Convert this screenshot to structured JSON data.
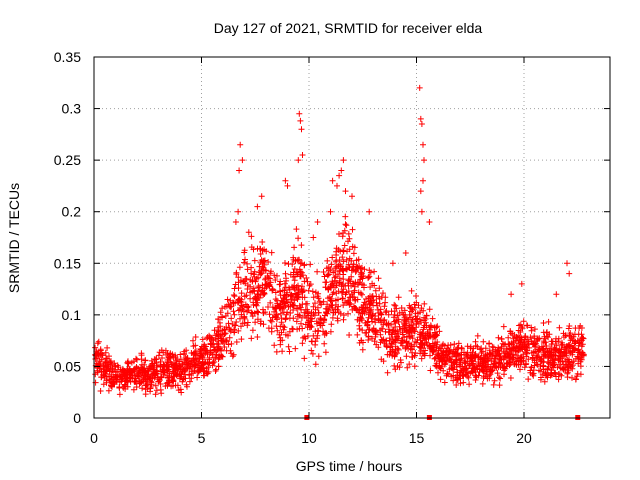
{
  "chart_data": {
    "type": "scatter",
    "title": "Day 127 of 2021, SRMTID for receiver elda",
    "xlabel": "GPS time / hours",
    "ylabel": "SRMTID / TECUs",
    "xlim": [
      0,
      24
    ],
    "ylim": [
      0,
      0.35
    ],
    "x_ticks": [
      0,
      5,
      10,
      15,
      20
    ],
    "x_tick_labels": [
      "0",
      "5",
      "10",
      "15",
      "20"
    ],
    "y_ticks": [
      0,
      0.05,
      0.1,
      0.15,
      0.2,
      0.25,
      0.3,
      0.35
    ],
    "y_tick_labels": [
      "0",
      "0.05",
      "0.1",
      "0.15",
      "0.2",
      "0.25",
      "0.3",
      "0.35"
    ],
    "grid": true,
    "marker": "+",
    "series_color": "#ff0000",
    "grid_color": "#a0a0a0",
    "envelope": {
      "x": [
        0,
        0.5,
        1,
        1.5,
        2,
        2.5,
        3,
        3.5,
        4,
        4.5,
        5,
        5.5,
        6,
        6.5,
        7,
        7.5,
        8,
        8.5,
        9,
        9.5,
        10,
        10.5,
        11,
        11.5,
        12,
        12.5,
        13,
        13.5,
        14,
        14.5,
        15,
        15.5,
        16,
        16.5,
        17,
        17.5,
        18,
        18.5,
        19,
        19.5,
        20,
        20.5,
        21,
        21.5,
        22,
        22.5
      ],
      "values": [
        0.055,
        0.05,
        0.04,
        0.04,
        0.045,
        0.04,
        0.045,
        0.05,
        0.045,
        0.055,
        0.055,
        0.065,
        0.08,
        0.1,
        0.12,
        0.12,
        0.125,
        0.11,
        0.105,
        0.13,
        0.1,
        0.1,
        0.12,
        0.14,
        0.13,
        0.115,
        0.1,
        0.09,
        0.08,
        0.08,
        0.085,
        0.08,
        0.06,
        0.055,
        0.05,
        0.05,
        0.055,
        0.05,
        0.06,
        0.065,
        0.07,
        0.06,
        0.065,
        0.06,
        0.06,
        0.065
      ],
      "x_range": [
        0.05,
        22.8
      ],
      "count": 2600
    },
    "peaks": [
      {
        "x": 6.8,
        "y": 0.265
      },
      {
        "x": 6.9,
        "y": 0.25
      },
      {
        "x": 6.75,
        "y": 0.24
      },
      {
        "x": 9.55,
        "y": 0.295
      },
      {
        "x": 9.6,
        "y": 0.288
      },
      {
        "x": 9.65,
        "y": 0.28
      },
      {
        "x": 9.7,
        "y": 0.255
      },
      {
        "x": 9.5,
        "y": 0.25
      },
      {
        "x": 8.9,
        "y": 0.23
      },
      {
        "x": 9.0,
        "y": 0.225
      },
      {
        "x": 7.8,
        "y": 0.215
      },
      {
        "x": 7.6,
        "y": 0.205
      },
      {
        "x": 11.6,
        "y": 0.25
      },
      {
        "x": 11.5,
        "y": 0.24
      },
      {
        "x": 11.4,
        "y": 0.235
      },
      {
        "x": 11.3,
        "y": 0.225
      },
      {
        "x": 11.1,
        "y": 0.23
      },
      {
        "x": 11.7,
        "y": 0.22
      },
      {
        "x": 12.0,
        "y": 0.215
      },
      {
        "x": 12.8,
        "y": 0.2
      },
      {
        "x": 11.0,
        "y": 0.2
      },
      {
        "x": 15.15,
        "y": 0.32
      },
      {
        "x": 15.2,
        "y": 0.29
      },
      {
        "x": 15.25,
        "y": 0.285
      },
      {
        "x": 15.3,
        "y": 0.265
      },
      {
        "x": 15.35,
        "y": 0.25
      },
      {
        "x": 15.3,
        "y": 0.23
      },
      {
        "x": 15.2,
        "y": 0.22
      },
      {
        "x": 15.25,
        "y": 0.2
      },
      {
        "x": 15.6,
        "y": 0.19
      },
      {
        "x": 22.0,
        "y": 0.15
      },
      {
        "x": 22.1,
        "y": 0.14
      },
      {
        "x": 19.9,
        "y": 0.13
      },
      {
        "x": 21.5,
        "y": 0.12
      },
      {
        "x": 19.4,
        "y": 0.12
      },
      {
        "x": 6.6,
        "y": 0.19
      },
      {
        "x": 6.7,
        "y": 0.2
      },
      {
        "x": 7.2,
        "y": 0.18
      },
      {
        "x": 10.4,
        "y": 0.19
      },
      {
        "x": 10.2,
        "y": 0.175
      },
      {
        "x": 14.5,
        "y": 0.16
      },
      {
        "x": 13.9,
        "y": 0.15
      }
    ],
    "baseline_markers": [
      {
        "x": 9.9,
        "y": 0
      },
      {
        "x": 15.6,
        "y": 0
      },
      {
        "x": 22.5,
        "y": 0
      }
    ]
  }
}
